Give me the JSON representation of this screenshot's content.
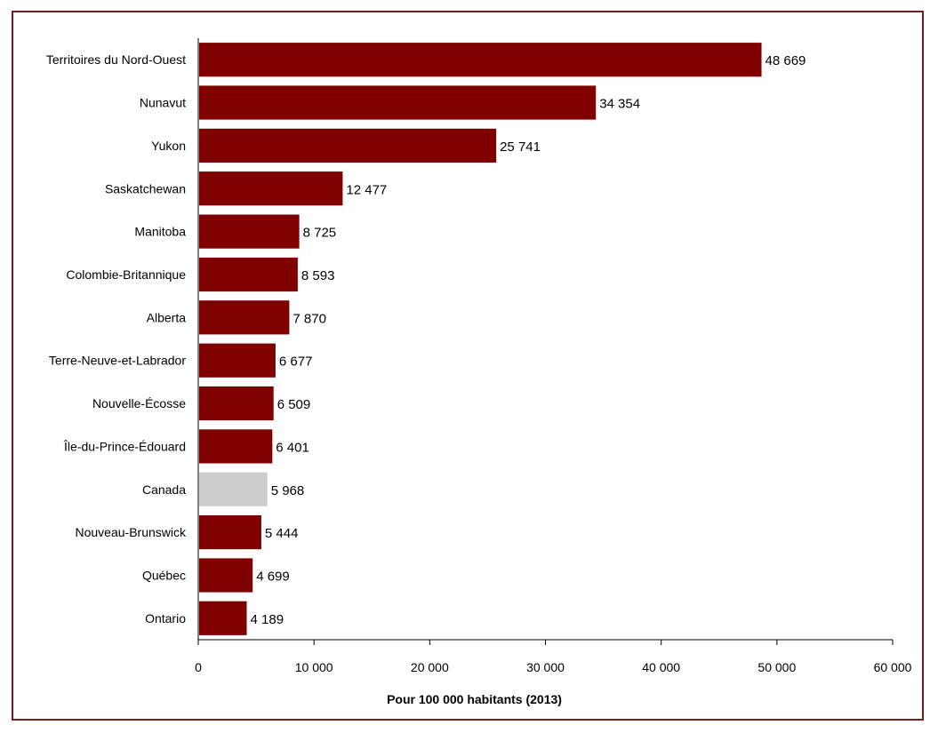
{
  "chart_data": {
    "type": "bar",
    "orientation": "horizontal",
    "categories": [
      "Territoires du Nord-Ouest",
      "Nunavut",
      "Yukon",
      "Saskatchewan",
      "Manitoba",
      "Colombie-Britannique",
      "Alberta",
      "Terre-Neuve-et-Labrador",
      "Nouvelle-Écosse",
      "Île-du-Prince-Édouard",
      "Canada",
      "Nouveau-Brunswick",
      "Québec",
      "Ontario"
    ],
    "values": [
      48669,
      34354,
      25741,
      12477,
      8725,
      8593,
      7870,
      6677,
      6509,
      6401,
      5968,
      5444,
      4699,
      4189
    ],
    "value_labels": [
      "48 669",
      "34 354",
      "25 741",
      "12 477",
      "8 725",
      "8 593",
      "7 870",
      "6 677",
      "6 509",
      "6 401",
      "5 968",
      "5 444",
      "4 699",
      "4 189"
    ],
    "highlight_category": "Canada",
    "xlim": [
      0,
      60000
    ],
    "xticks": [
      0,
      10000,
      20000,
      30000,
      40000,
      50000,
      60000
    ],
    "xtick_labels": [
      "0",
      "10 000",
      "20 000",
      "30 000",
      "40 000",
      "50 000",
      "60 000"
    ],
    "xlabel": "Pour 100 000 habitants (2013)",
    "grid": false,
    "colors": {
      "bar": "#800000",
      "highlight": "#cccccc",
      "frame": "#7b1a1f"
    }
  }
}
